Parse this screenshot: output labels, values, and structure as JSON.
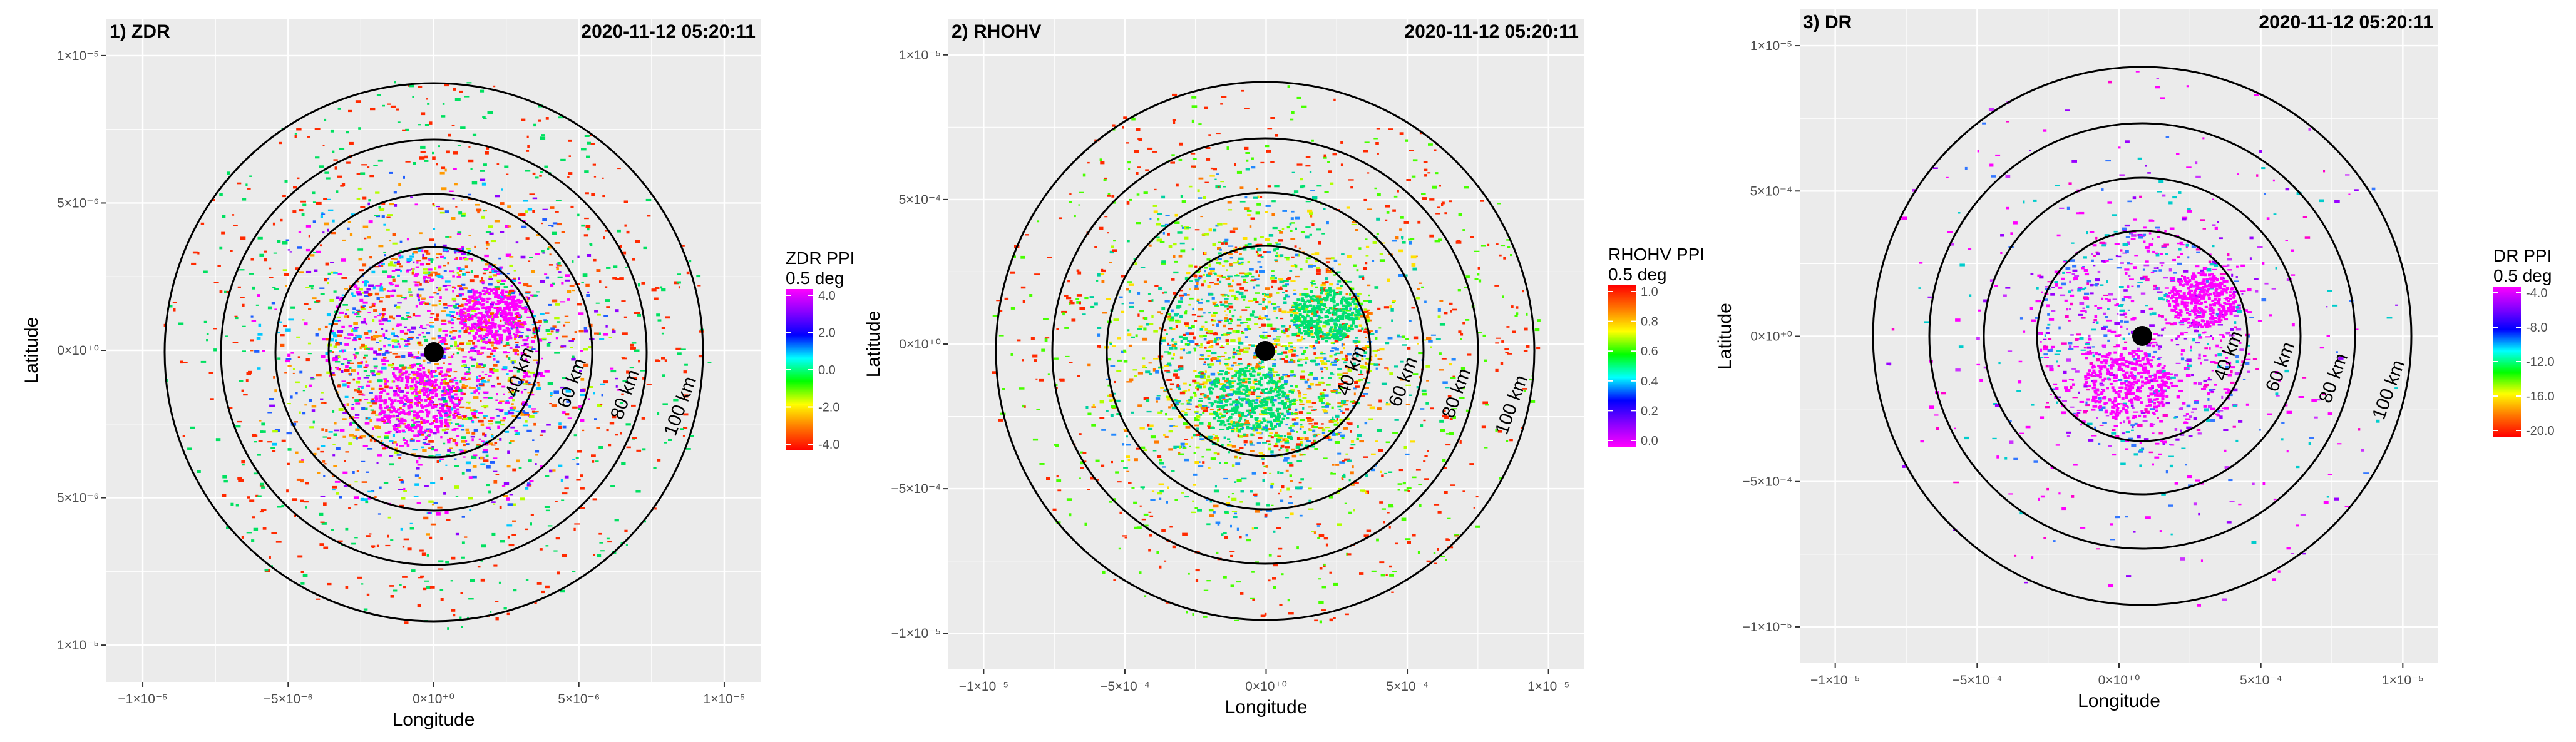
{
  "chart_data": [
    {
      "type": "scatter",
      "panel": "1",
      "title": "1) ZDR",
      "timestamp": "2020-11-12 05:20:11",
      "xlabel": "Longitude",
      "ylabel": "Latitude",
      "x_ticks": [
        "−1×10⁻⁵",
        "−5×10⁻⁶",
        "0×10⁺⁰",
        "5×10⁻⁶",
        "1×10⁻⁵"
      ],
      "y_ticks": [
        "1×10⁻⁵",
        "5×10⁻⁶",
        "0×10⁺⁰",
        "5×10⁻⁶",
        "1×10⁻⁵"
      ],
      "range_rings_km": [
        "40 km",
        "60 km",
        "80 km",
        "100 km"
      ],
      "legend": {
        "title": "ZDR PPI",
        "subtitle": "0.5 deg",
        "labels": [
          "4.0",
          "2.0",
          "0.0",
          "-2.0",
          "-4.0"
        ],
        "colors": [
          "#ff00ff",
          "#8800ff",
          "#0000ff",
          "#00ffff",
          "#00ff00",
          "#ffff00",
          "#ff7700",
          "#ff0000"
        ]
      }
    },
    {
      "type": "scatter",
      "panel": "2",
      "title": "2) RHOHV",
      "timestamp": "2020-11-12 05:20:11",
      "xlabel": "Longitude",
      "ylabel": "Latitude",
      "x_ticks": [
        "−1×10⁻⁵",
        "−5×10⁻⁴",
        "0×10⁺⁰",
        "5×10⁻⁴",
        "1×10⁻⁵"
      ],
      "y_ticks": [
        "1×10⁻⁵",
        "5×10⁻⁴",
        "0×10⁺⁰",
        "−5×10⁻⁴",
        "−1×10⁻⁵"
      ],
      "range_rings_km": [
        "40 km",
        "60 km",
        "80 km",
        "100 km"
      ],
      "legend": {
        "title": "RHOHV PPI",
        "subtitle": "0.5 deg",
        "labels": [
          "1.0",
          "0.8",
          "0.6",
          "0.4",
          "0.2",
          "0.0"
        ],
        "colors": [
          "#ff0000",
          "#ff7700",
          "#ffff00",
          "#00ff00",
          "#00ffff",
          "#0000ff",
          "#8800ff",
          "#ff00ff"
        ]
      }
    },
    {
      "type": "scatter",
      "panel": "3",
      "title": "3) DR",
      "timestamp": "2020-11-12 05:20:11",
      "xlabel": "Longitude",
      "ylabel": "Latitude",
      "x_ticks": [
        "−1×10⁻⁵",
        "−5×10⁻⁴",
        "0×10⁺⁰",
        "5×10⁻⁴",
        "1×10⁻⁵"
      ],
      "y_ticks": [
        "1×10⁻⁵",
        "5×10⁻⁴",
        "0×10⁺⁰",
        "−5×10⁻⁴",
        "−1×10⁻⁵"
      ],
      "range_rings_km": [
        "40 km",
        "60 km",
        "80 km",
        "100 km"
      ],
      "legend": {
        "title": "DR PPI",
        "subtitle": "0.5 deg",
        "labels": [
          "-4.0",
          "-8.0",
          "-12.0",
          "-16.0",
          "-20.0"
        ],
        "colors": [
          "#ff00ff",
          "#8800ff",
          "#0000ff",
          "#00ffff",
          "#00ff00",
          "#ffff00",
          "#ff7700",
          "#ff0000"
        ]
      }
    }
  ]
}
